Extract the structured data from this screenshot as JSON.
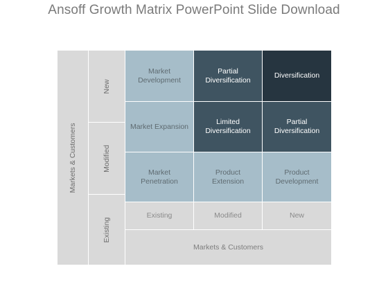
{
  "title": "Ansoff Growth Matrix PowerPoint Slide Download",
  "axes": {
    "vertical_title": "Markets & Customers",
    "horizontal_title": "Markets & Customers",
    "vertical_levels": [
      "New",
      "Modified",
      "Existing"
    ],
    "horizontal_levels": [
      "Existing",
      "Modified",
      "New"
    ]
  },
  "grid": {
    "rows": [
      [
        "Market\nDevelopment",
        "Partial\nDiversification",
        "Diversification"
      ],
      [
        "Market Expansion",
        "Limited\nDiversification",
        "Partial\nDiversification"
      ],
      [
        "Market\nPenetration",
        "Product\nExtension",
        "Product\nDevelopment"
      ]
    ]
  },
  "colors": {
    "light": "#a6bdc9",
    "mid": "#3f5461",
    "dark": "#263540",
    "gray": "#d9d9d9"
  }
}
